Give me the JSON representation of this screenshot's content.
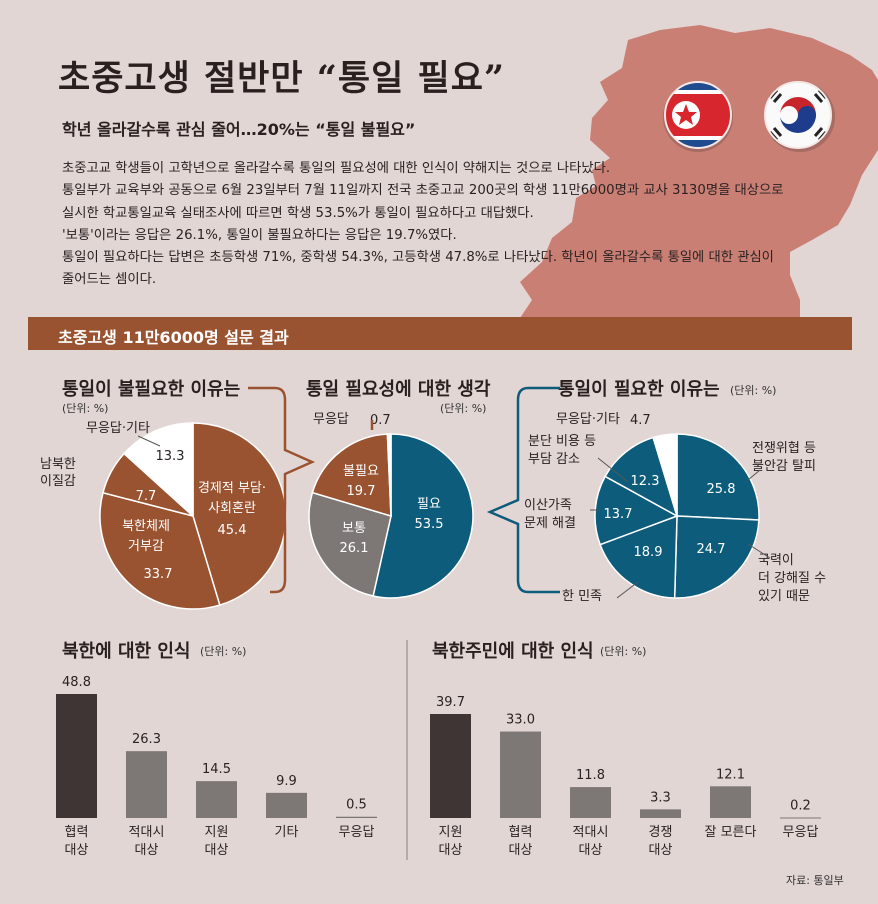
{
  "title": "초중고생 절반만 “통일 필요”",
  "subtitle": "학년 올라갈수록 관심 줄어…20%는 “통일 불필요”",
  "body_lines": [
    "초중고교 학생들이 고학년으로 올라갈수록 통일의 필요성에 대한 인식이 약해지는 것으로 나타났다.",
    "통일부가 교육부와 공동으로 6월 23일부터 7월 11일까지 전국 초중고교 200곳의 학생 11만6000명과 교사 3130명을 대상으로",
    "실시한 학교통일교육 실태조사에 따르면 학생 53.5%가 통일이 필요하다고 대답했다.",
    "'보통'이라는 응답은 26.1%, 통일이 불필요하다는 응답은 19.7%였다.",
    "통일이 필요하다는 답변은 초등학생 71%, 중학생 54.3%, 고등학생 47.8%로 나타났다. 학년이 올라갈수록 통일에 대한 관심이",
    "줄어드는 셈이다."
  ],
  "banner": "초중고생 11만6000명 설문 결과",
  "source": "자료: 통일부",
  "colors": {
    "brown": "#9a5330",
    "blue": "#0e5c7b",
    "gray": "#7d7775",
    "dark": "#3f3535",
    "white": "#ffffff",
    "map": "#c8756a"
  },
  "chart_data": [
    {
      "type": "pie",
      "title": "통일이 불필요한 이유는",
      "unit": "(단위: %)",
      "slices": [
        {
          "name": "경제적 부담·사회혼란",
          "value": 45.4,
          "label_lines": [
            "경제적 부담·",
            "사회혼란"
          ],
          "color": "brown"
        },
        {
          "name": "북한체제 거부감",
          "value": 33.7,
          "label_lines": [
            "북한체제",
            "거부감"
          ],
          "color": "brown"
        },
        {
          "name": "남북한 이질감",
          "value": 7.7,
          "label_lines": [
            "남북한",
            "이질감"
          ],
          "color": "brown"
        },
        {
          "name": "무응답·기타",
          "value": 13.3,
          "label_lines": [
            "무응답·기타"
          ],
          "color": "white"
        }
      ]
    },
    {
      "type": "pie",
      "title": "통일 필요성에 대한 생각",
      "unit": "(단위: %)",
      "slices": [
        {
          "name": "필요",
          "value": 53.5,
          "color": "blue"
        },
        {
          "name": "보통",
          "value": 26.1,
          "color": "gray"
        },
        {
          "name": "불필요",
          "value": 19.7,
          "color": "brown"
        },
        {
          "name": "무응답",
          "value": 0.7,
          "color": "white"
        }
      ]
    },
    {
      "type": "pie",
      "title": "통일이 필요한 이유는",
      "unit": "(단위: %)",
      "slices": [
        {
          "name": "전쟁위협 등 불안감 탈피",
          "value": 25.8,
          "label_lines": [
            "전쟁위협 등",
            "불안감 탈피"
          ],
          "color": "blue"
        },
        {
          "name": "국력이 더 강해질 수 있기 때문",
          "value": 24.7,
          "label_lines": [
            "국력이",
            "더 강해질 수",
            "있기 때문"
          ],
          "color": "blue"
        },
        {
          "name": "한 민족",
          "value": 18.9,
          "label_lines": [
            "한 민족"
          ],
          "color": "blue"
        },
        {
          "name": "이산가족 문제 해결",
          "value": 13.7,
          "label_lines": [
            "이산가족",
            "문제 해결"
          ],
          "color": "blue"
        },
        {
          "name": "분단 비용 등 부담 감소",
          "value": 12.3,
          "label_lines": [
            "분단 비용 등",
            "부담 감소"
          ],
          "color": "blue"
        },
        {
          "name": "무응답·기타",
          "value": 4.7,
          "label_lines": [
            "무응답·기타"
          ],
          "color": "white"
        }
      ]
    },
    {
      "type": "bar",
      "title": "북한에 대한 인식",
      "unit": "(단위: %)",
      "categories": [
        "협력 대상",
        "적대시 대상",
        "지원 대상",
        "기타",
        "무응답"
      ],
      "category_lines": [
        [
          "협력",
          "대상"
        ],
        [
          "적대시",
          "대상"
        ],
        [
          "지원",
          "대상"
        ],
        [
          "기타"
        ],
        [
          "무응답"
        ]
      ],
      "values": [
        48.8,
        26.3,
        14.5,
        9.9,
        0.5
      ],
      "value_labels": [
        "48.8",
        "26.3",
        "14.5",
        "9.9",
        "0.5"
      ],
      "highlight_index": 0
    },
    {
      "type": "bar",
      "title": "북한주민에 대한 인식",
      "unit": "(단위: %)",
      "categories": [
        "지원 대상",
        "협력 대상",
        "적대시 대상",
        "경쟁 대상",
        "잘 모른다",
        "무응답"
      ],
      "category_lines": [
        [
          "지원",
          "대상"
        ],
        [
          "협력",
          "대상"
        ],
        [
          "적대시",
          "대상"
        ],
        [
          "경쟁",
          "대상"
        ],
        [
          "잘 모른다"
        ],
        [
          "무응답"
        ]
      ],
      "values": [
        39.7,
        33.0,
        11.8,
        3.3,
        12.1,
        0.2
      ],
      "value_labels": [
        "39.7",
        "33.0",
        "11.8",
        "3.3",
        "12.1",
        "0.2"
      ],
      "highlight_index": 0
    }
  ]
}
